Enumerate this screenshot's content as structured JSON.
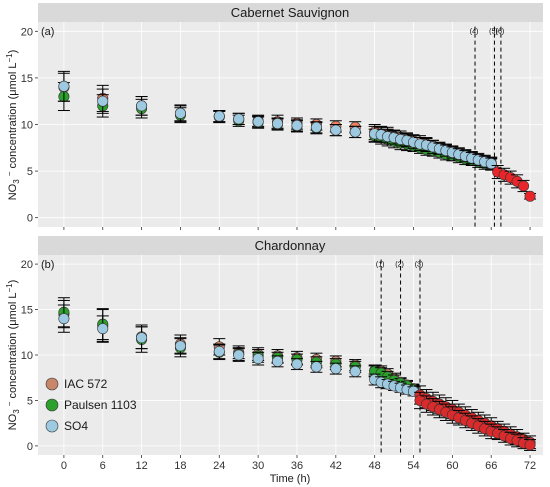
{
  "chart_data": [
    {
      "type": "scatter",
      "title": "Cabernet Sauvignon",
      "panel_label": "(a)",
      "xlabel": "Time (h)",
      "ylabel": "NO3 − concentration (μmol L−1)",
      "xlim": [
        -4,
        74
      ],
      "ylim": [
        -1,
        21
      ],
      "y_ticks": [
        0,
        5,
        10,
        15,
        20
      ],
      "x_ticks": [
        0,
        6,
        12,
        18,
        24,
        30,
        36,
        42,
        48,
        54,
        60,
        66,
        72
      ],
      "grid": true,
      "markers": [
        {
          "label": "(4)",
          "x": 63.5
        },
        {
          "label": "(5)",
          "x": 66.5
        },
        {
          "label": "(6)",
          "x": 67.5
        }
      ],
      "series": [
        {
          "name": "IAC 572",
          "color": "#f08060",
          "x": [
            0,
            6,
            12,
            18,
            24,
            27,
            30,
            33,
            36,
            39,
            42,
            45,
            48,
            49,
            50,
            51,
            52,
            53,
            54,
            55,
            56,
            57,
            58,
            59,
            60,
            61,
            62,
            63,
            64,
            65,
            66
          ],
          "y": [
            14.0,
            12.8,
            12.0,
            11.2,
            10.8,
            10.6,
            10.4,
            10.3,
            10.1,
            10.0,
            9.8,
            9.7,
            9.2,
            9.0,
            8.9,
            8.7,
            8.6,
            8.4,
            8.2,
            8.1,
            7.9,
            7.7,
            7.5,
            7.3,
            7.1,
            6.9,
            6.7,
            6.5,
            6.3,
            6.1,
            5.9
          ],
          "err": [
            1.5,
            1.4,
            1.0,
            0.8,
            0.6,
            0.6,
            0.6,
            0.7,
            0.6,
            0.6,
            0.6,
            0.6,
            0.8,
            0.8,
            0.8,
            0.7,
            0.7,
            0.7,
            0.7,
            0.7,
            0.7,
            0.6,
            0.6,
            0.6,
            0.6,
            0.6,
            0.6,
            0.6,
            0.6,
            0.6,
            0.6
          ]
        },
        {
          "name": "Paulsen 1103",
          "color": "#2ca02c",
          "x": [
            0,
            6,
            12,
            18,
            24,
            27,
            30,
            33,
            36,
            39,
            42,
            45,
            48,
            49,
            50,
            51,
            52,
            53,
            54,
            55,
            56,
            57,
            58,
            59,
            60,
            61,
            62,
            63,
            64,
            65,
            66
          ],
          "y": [
            13.0,
            12.0,
            11.7,
            11.0,
            10.9,
            10.4,
            10.2,
            10.0,
            9.8,
            9.6,
            9.4,
            9.2,
            8.8,
            8.6,
            8.4,
            8.2,
            8.0,
            7.9,
            7.7,
            7.5,
            7.3,
            7.2,
            7.0,
            6.8,
            6.7,
            6.5,
            6.3,
            6.2,
            6.0,
            5.8,
            5.7
          ],
          "err": [
            1.5,
            1.2,
            1.0,
            0.8,
            0.6,
            0.6,
            0.6,
            0.6,
            0.6,
            0.6,
            0.6,
            0.6,
            0.7,
            0.7,
            0.7,
            0.7,
            0.7,
            0.7,
            0.6,
            0.6,
            0.6,
            0.6,
            0.6,
            0.6,
            0.6,
            0.6,
            0.6,
            0.6,
            0.6,
            0.6,
            0.6
          ]
        },
        {
          "name": "SO4",
          "color": "#9ecae1",
          "x": [
            0,
            6,
            12,
            18,
            24,
            27,
            30,
            33,
            36,
            39,
            42,
            45,
            48,
            49,
            50,
            51,
            52,
            53,
            54,
            55,
            56,
            57,
            58,
            59,
            60,
            61,
            62,
            63,
            64,
            65,
            66
          ],
          "y": [
            14.1,
            12.5,
            12.0,
            11.2,
            10.9,
            10.6,
            10.3,
            10.1,
            9.9,
            9.7,
            9.4,
            9.2,
            9.0,
            8.9,
            8.7,
            8.6,
            8.4,
            8.3,
            8.1,
            7.9,
            7.8,
            7.6,
            7.4,
            7.2,
            7.0,
            6.8,
            6.6,
            6.4,
            6.2,
            6.0,
            5.8
          ],
          "err": [
            1.6,
            1.3,
            1.0,
            0.9,
            0.6,
            0.6,
            0.6,
            0.6,
            0.6,
            0.6,
            0.6,
            0.6,
            0.8,
            0.8,
            0.8,
            0.7,
            0.7,
            0.7,
            0.7,
            0.7,
            0.7,
            0.7,
            0.6,
            0.6,
            0.6,
            0.6,
            0.6,
            0.6,
            0.6,
            0.6,
            0.6
          ]
        },
        {
          "name": "",
          "color": "#e8262a",
          "x": [
            67,
            68,
            69,
            70,
            71,
            72
          ],
          "y": [
            4.9,
            4.6,
            4.3,
            3.9,
            3.4,
            2.3
          ],
          "err": [
            0.7,
            0.7,
            0.7,
            0.7,
            0.6,
            0.3
          ]
        }
      ]
    },
    {
      "type": "scatter",
      "title": "Chardonnay",
      "panel_label": "(b)",
      "xlabel": "Time (h)",
      "ylabel": "NO3 − concentration (μmol L−1)",
      "xlim": [
        -4,
        74
      ],
      "ylim": [
        -1,
        21
      ],
      "y_ticks": [
        0,
        5,
        10,
        15,
        20
      ],
      "x_ticks": [
        0,
        6,
        12,
        18,
        24,
        30,
        36,
        42,
        48,
        54,
        60,
        66,
        72
      ],
      "grid": true,
      "markers": [
        {
          "label": "(1)",
          "x": 49
        },
        {
          "label": "(2)",
          "x": 52
        },
        {
          "label": "(3)",
          "x": 55
        }
      ],
      "series": [
        {
          "name": "IAC 572",
          "color": "#c8866a",
          "x": [
            0,
            6,
            12,
            18,
            24,
            27,
            30,
            33,
            36,
            39,
            42,
            45,
            48,
            49,
            50,
            51,
            52,
            53,
            54
          ],
          "y": [
            14.5,
            13.2,
            12.0,
            11.2,
            10.9,
            10.3,
            10.1,
            9.9,
            9.7,
            9.5,
            9.3,
            8.9,
            8.3,
            8.2,
            7.9,
            7.4,
            7.0,
            6.7,
            6.3
          ],
          "err": [
            1.5,
            1.8,
            1.3,
            1.0,
            0.9,
            0.7,
            0.7,
            0.7,
            0.7,
            0.7,
            0.6,
            0.6,
            0.6,
            0.6,
            0.6,
            0.6,
            0.5,
            0.5,
            0.5
          ]
        },
        {
          "name": "Paulsen 1103",
          "color": "#2ca02c",
          "x": [
            0,
            6,
            12,
            18,
            24,
            27,
            30,
            33,
            36,
            39,
            42,
            45,
            48,
            49,
            50,
            51,
            52,
            53,
            54
          ],
          "y": [
            14.7,
            13.4,
            11.7,
            10.8,
            10.3,
            10.1,
            9.9,
            9.7,
            9.5,
            9.2,
            9.0,
            8.7,
            8.2,
            8.0,
            7.6,
            7.2,
            6.9,
            6.6,
            6.2
          ],
          "err": [
            1.6,
            1.7,
            1.4,
            1.0,
            0.8,
            0.7,
            0.7,
            0.6,
            0.6,
            0.6,
            0.6,
            0.6,
            0.6,
            0.6,
            0.6,
            0.6,
            0.5,
            0.5,
            0.5
          ]
        },
        {
          "name": "SO4",
          "color": "#9ecae1",
          "x": [
            0,
            6,
            12,
            18,
            24,
            27,
            30,
            33,
            36,
            39,
            42,
            45,
            48,
            49,
            50,
            51,
            52,
            53,
            54
          ],
          "y": [
            14.0,
            12.9,
            11.9,
            11.0,
            10.4,
            10.0,
            9.6,
            9.3,
            9.0,
            8.7,
            8.5,
            8.2,
            7.3,
            7.0,
            6.8,
            6.6,
            6.4,
            6.2,
            6.0
          ],
          "err": [
            1.5,
            1.4,
            1.2,
            0.9,
            0.8,
            0.7,
            0.7,
            0.6,
            0.6,
            0.6,
            0.6,
            0.6,
            0.6,
            0.6,
            0.5,
            0.5,
            0.5,
            0.5,
            0.5
          ]
        },
        {
          "name": "",
          "color": "#d92b2b",
          "x": [
            55,
            56,
            57,
            58,
            59,
            60,
            61,
            62,
            63,
            64,
            65,
            66,
            67,
            68,
            69,
            70,
            71,
            72
          ],
          "y": [
            5.6,
            5.2,
            4.9,
            4.6,
            4.3,
            4.0,
            3.7,
            3.4,
            3.1,
            2.8,
            2.5,
            2.2,
            1.9,
            1.6,
            1.3,
            1.0,
            0.7,
            0.4
          ],
          "err": [
            1.0,
            1.0,
            1.0,
            1.0,
            1.0,
            1.0,
            0.9,
            0.9,
            0.9,
            0.9,
            0.9,
            0.9,
            0.8,
            0.8,
            0.8,
            0.8,
            0.7,
            0.7
          ]
        },
        {
          "name": "",
          "color": "#d92b2b",
          "x": [
            55,
            56,
            57,
            58,
            59,
            60,
            61,
            62,
            63,
            64,
            65,
            66,
            67,
            68,
            69,
            70,
            71,
            72
          ],
          "y": [
            5.0,
            4.6,
            4.3,
            4.0,
            3.7,
            3.4,
            3.1,
            2.8,
            2.5,
            2.2,
            1.9,
            1.6,
            1.4,
            1.1,
            0.8,
            0.6,
            0.3,
            0.1
          ],
          "err": [
            0.9,
            0.9,
            0.9,
            0.9,
            0.9,
            0.9,
            0.8,
            0.8,
            0.8,
            0.8,
            0.8,
            0.8,
            0.7,
            0.7,
            0.7,
            0.7,
            0.6,
            0.6
          ]
        }
      ]
    }
  ],
  "legend": [
    {
      "label": "IAC 572",
      "color": "#c8866a"
    },
    {
      "label": "Paulsen 1103",
      "color": "#2ca02c"
    },
    {
      "label": "SO4",
      "color": "#9ecae1"
    }
  ]
}
